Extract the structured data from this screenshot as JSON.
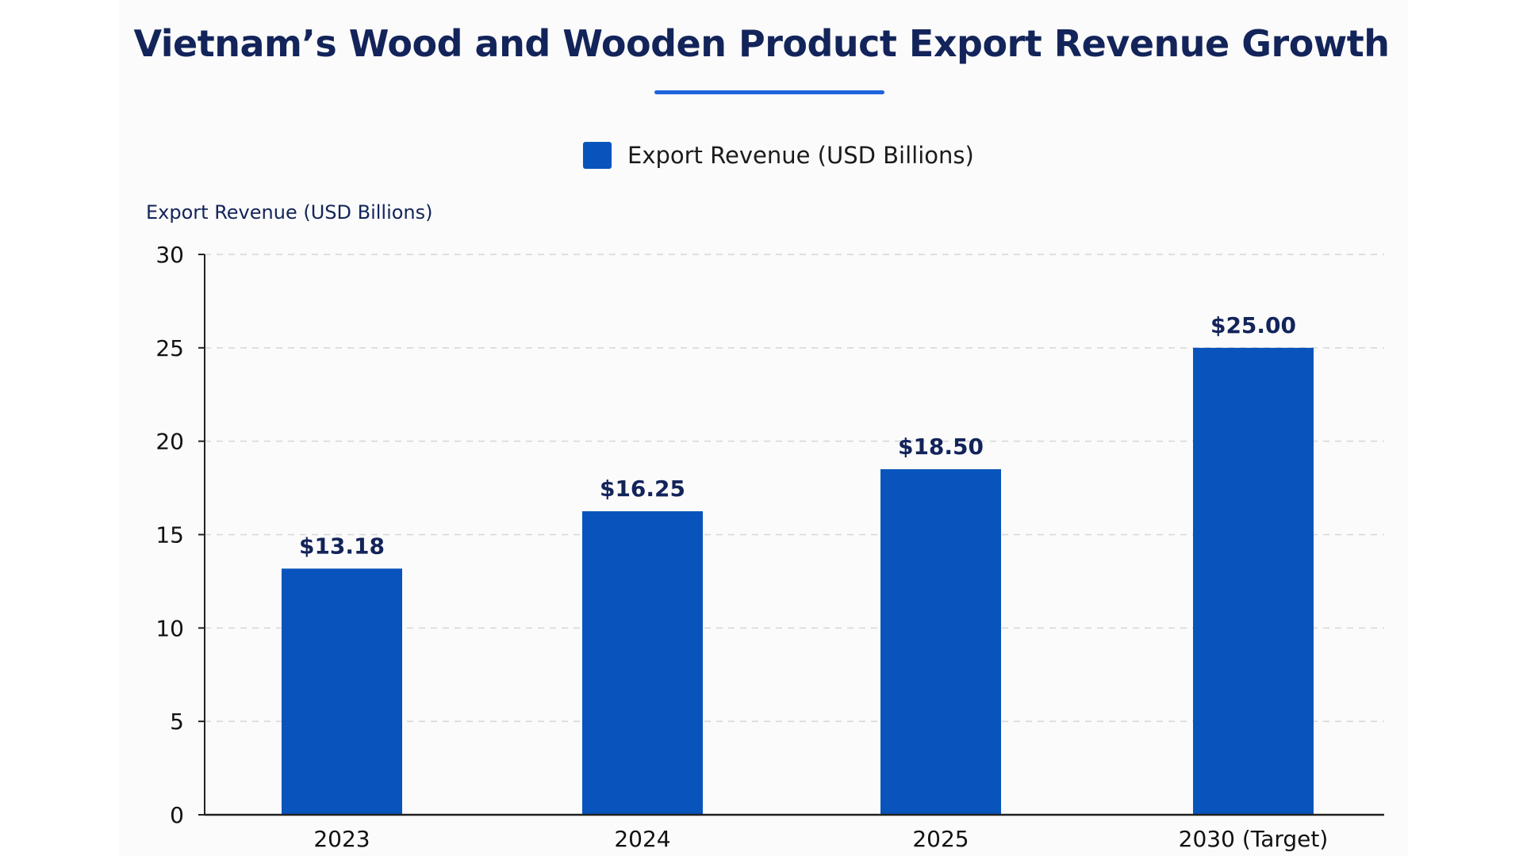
{
  "chart_data": {
    "type": "bar",
    "title": "Vietnam’s Wood and Wooden Product Export Revenue Growth",
    "xlabel": "",
    "ylabel": "Export Revenue (USD Billions)",
    "categories": [
      "2023",
      "2024",
      "2025",
      "2030 (Target)"
    ],
    "series": [
      {
        "name": "Export Revenue (USD Billions)",
        "values": [
          13.18,
          16.25,
          18.5,
          25.0
        ],
        "data_labels": [
          "$13.18",
          "$16.25",
          "$18.50",
          "$25.00"
        ],
        "color": "#0854bc"
      }
    ],
    "ylim": [
      0,
      30
    ],
    "yticks": [
      0,
      5,
      10,
      15,
      20,
      25,
      30
    ],
    "grid": true,
    "grid_style": "dashed horizontal",
    "legend_position": "top-center",
    "colors": {
      "title": "#13245a",
      "accent_underline": "#1f63dc",
      "bar": "#0854bc",
      "data_label": "#13245a",
      "grid": "#d6d6d6",
      "axis": "#222222"
    }
  }
}
